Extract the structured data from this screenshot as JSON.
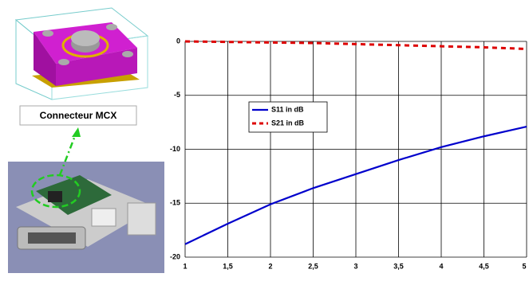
{
  "images": {
    "label": "Connecteur MCX"
  },
  "chart_data": {
    "type": "line",
    "x": [
      1,
      1.5,
      2,
      2.5,
      3,
      3.5,
      4,
      4.5,
      5
    ],
    "series": [
      {
        "name": "S11 in dB",
        "color": "#0000cc",
        "style": "solid",
        "values": [
          -18.8,
          -16.9,
          -15.1,
          -13.6,
          -12.3,
          -11.0,
          -9.8,
          -8.8,
          -7.9
        ]
      },
      {
        "name": "S21 in dB",
        "color": "#dd0000",
        "style": "dashed",
        "values": [
          0,
          -0.05,
          -0.1,
          -0.15,
          -0.25,
          -0.35,
          -0.45,
          -0.55,
          -0.7
        ]
      }
    ],
    "xlim": [
      1,
      5
    ],
    "xticks": [
      1,
      {
        "value": 1.5,
        "label": "1,5"
      },
      2,
      {
        "value": 2.5,
        "label": "2,5"
      },
      3,
      {
        "value": 3.5,
        "label": "3,5"
      },
      4,
      {
        "value": 4.5,
        "label": "4,5"
      },
      5
    ],
    "ylim": [
      -20,
      0
    ],
    "yticks": [
      0,
      -5,
      -10,
      -15,
      -20
    ],
    "grid": true,
    "legend": "inside-left"
  }
}
